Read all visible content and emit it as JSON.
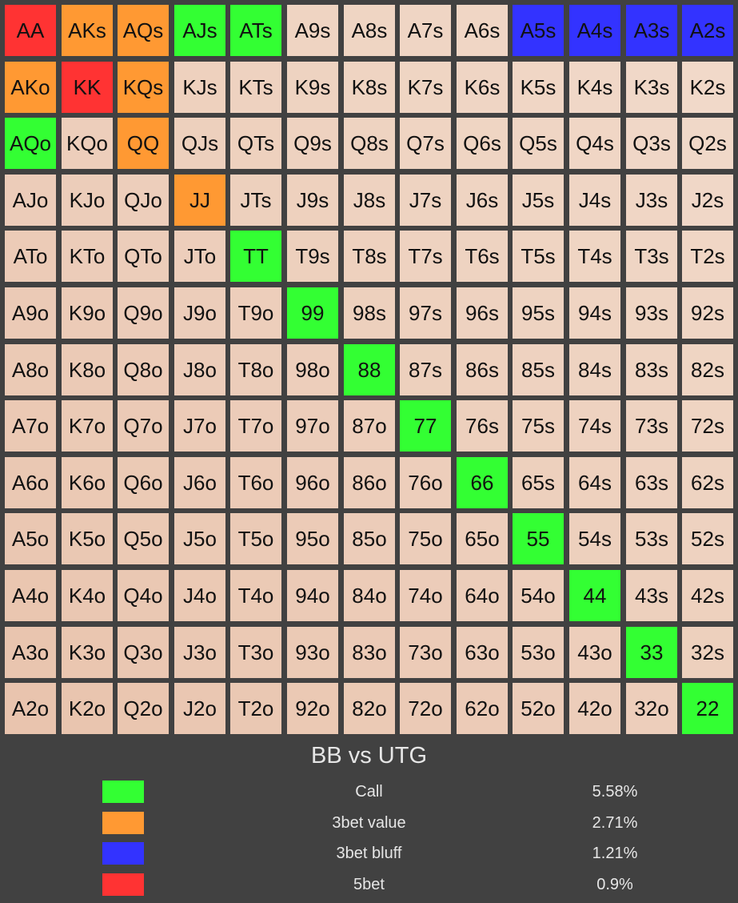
{
  "title": "BB vs UTG",
  "colors": {
    "call": "#33ff33",
    "3bet_value": "#ff9933",
    "3bet_bluff": "#3333ff",
    "5bet": "#ff3333"
  },
  "rows": [
    [
      "AA",
      "AKs",
      "AQs",
      "AJs",
      "ATs",
      "A9s",
      "A8s",
      "A7s",
      "A6s",
      "A5s",
      "A4s",
      "A3s",
      "A2s"
    ],
    [
      "AKo",
      "KK",
      "KQs",
      "KJs",
      "KTs",
      "K9s",
      "K8s",
      "K7s",
      "K6s",
      "K5s",
      "K4s",
      "K3s",
      "K2s"
    ],
    [
      "AQo",
      "KQo",
      "QQ",
      "QJs",
      "QTs",
      "Q9s",
      "Q8s",
      "Q7s",
      "Q6s",
      "Q5s",
      "Q4s",
      "Q3s",
      "Q2s"
    ],
    [
      "AJo",
      "KJo",
      "QJo",
      "JJ",
      "JTs",
      "J9s",
      "J8s",
      "J7s",
      "J6s",
      "J5s",
      "J4s",
      "J3s",
      "J2s"
    ],
    [
      "ATo",
      "KTo",
      "QTo",
      "JTo",
      "TT",
      "T9s",
      "T8s",
      "T7s",
      "T6s",
      "T5s",
      "T4s",
      "T3s",
      "T2s"
    ],
    [
      "A9o",
      "K9o",
      "Q9o",
      "J9o",
      "T9o",
      "99",
      "98s",
      "97s",
      "96s",
      "95s",
      "94s",
      "93s",
      "92s"
    ],
    [
      "A8o",
      "K8o",
      "Q8o",
      "J8o",
      "T8o",
      "98o",
      "88",
      "87s",
      "86s",
      "85s",
      "84s",
      "83s",
      "82s"
    ],
    [
      "A7o",
      "K7o",
      "Q7o",
      "J7o",
      "T7o",
      "97o",
      "87o",
      "77",
      "76s",
      "75s",
      "74s",
      "73s",
      "72s"
    ],
    [
      "A6o",
      "K6o",
      "Q6o",
      "J6o",
      "T6o",
      "96o",
      "86o",
      "76o",
      "66",
      "65s",
      "64s",
      "63s",
      "62s"
    ],
    [
      "A5o",
      "K5o",
      "Q5o",
      "J5o",
      "T5o",
      "95o",
      "85o",
      "75o",
      "65o",
      "55",
      "54s",
      "53s",
      "52s"
    ],
    [
      "A4o",
      "K4o",
      "Q4o",
      "J4o",
      "T4o",
      "94o",
      "84o",
      "74o",
      "64o",
      "54o",
      "44",
      "43s",
      "42s"
    ],
    [
      "A3o",
      "K3o",
      "Q3o",
      "J3o",
      "T3o",
      "93o",
      "83o",
      "73o",
      "63o",
      "53o",
      "43o",
      "33",
      "32s"
    ],
    [
      "A2o",
      "K2o",
      "Q2o",
      "J2o",
      "T2o",
      "92o",
      "82o",
      "72o",
      "62o",
      "52o",
      "42o",
      "32o",
      "22"
    ]
  ],
  "actions": {
    "AA": "5bet",
    "KK": "5bet",
    "AKs": "3bet_value",
    "AQs": "3bet_value",
    "AKo": "3bet_value",
    "KQs": "3bet_value",
    "QQ": "3bet_value",
    "JJ": "3bet_value",
    "A5s": "3bet_bluff",
    "A4s": "3bet_bluff",
    "A3s": "3bet_bluff",
    "A2s": "3bet_bluff",
    "AJs": "call",
    "ATs": "call",
    "AQo": "call",
    "TT": "call",
    "99": "call",
    "88": "call",
    "77": "call",
    "66": "call",
    "55": "call",
    "44": "call",
    "33": "call",
    "22": "call"
  },
  "legend": [
    {
      "key": "call",
      "label": "Call",
      "percent": "5.58%"
    },
    {
      "key": "3bet_value",
      "label": "3bet value",
      "percent": "2.71%"
    },
    {
      "key": "3bet_bluff",
      "label": "3bet bluff",
      "percent": "1.21%"
    },
    {
      "key": "5bet",
      "label": "5bet",
      "percent": "0.9%"
    }
  ]
}
